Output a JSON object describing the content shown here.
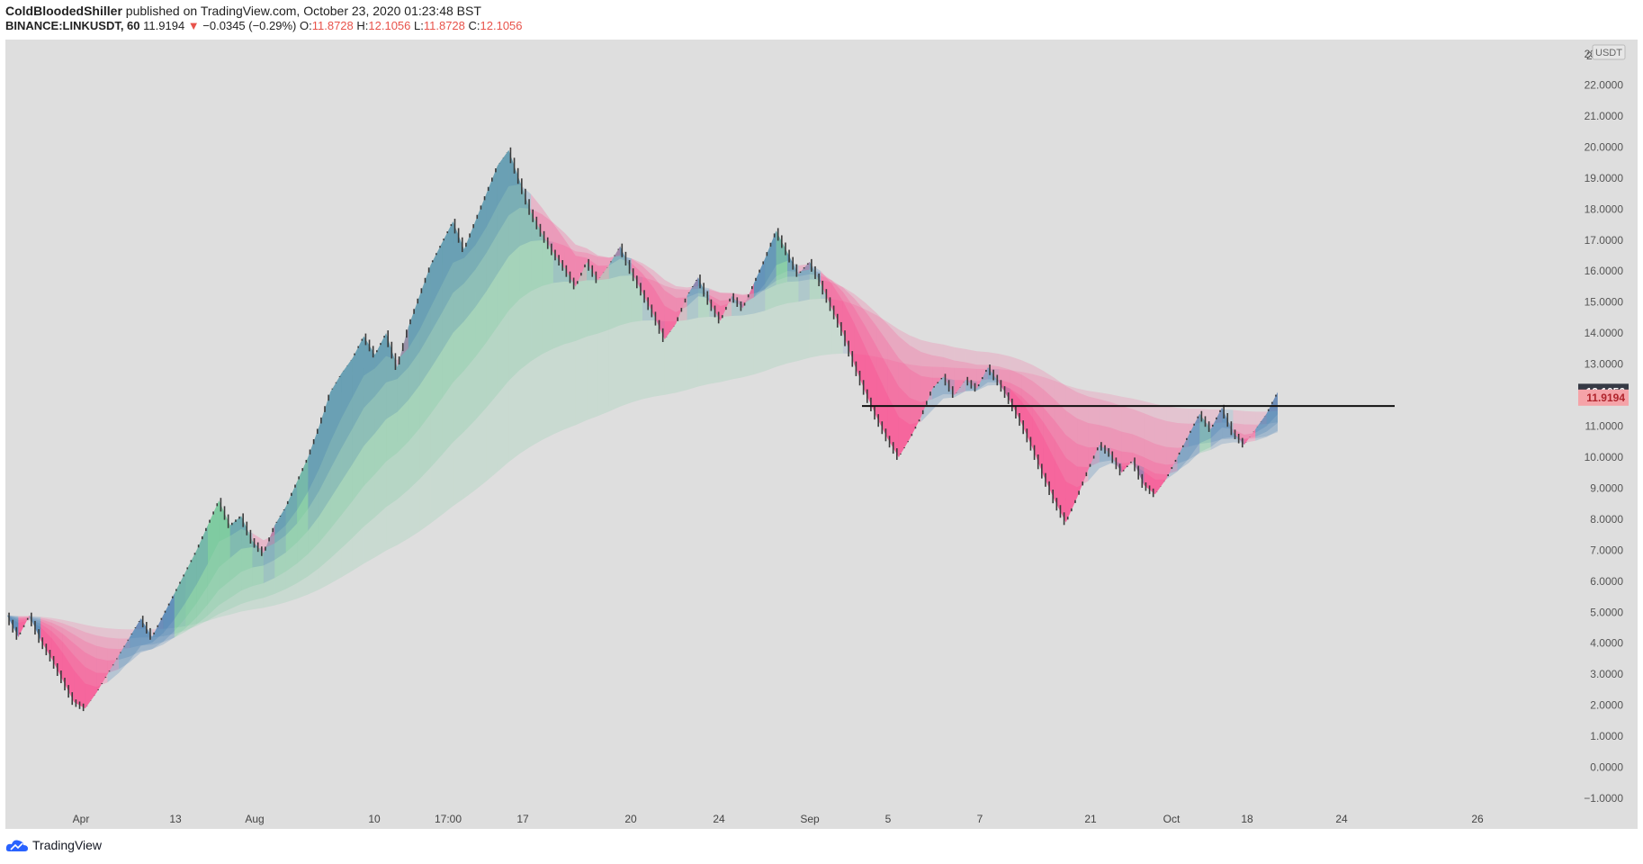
{
  "header": {
    "author": "ColdBloodedShiller",
    "published": "published on TradingView.com, October 23, 2020 01:23:48 BST",
    "symbol": "BINANCE:LINKUSDT, 60",
    "last": "11.9194",
    "change": "−0.0345 (−0.29%)",
    "o_label": "O:",
    "o": "11.8728",
    "h_label": "H:",
    "h": "12.1056",
    "l_label": "L:",
    "l": "11.8728",
    "c_label": "C:",
    "c": "12.1056"
  },
  "footer": {
    "brand": "TradingView"
  },
  "colors": {
    "background": "#dedede",
    "pink": "#ff3d88",
    "green": "#5fc48c",
    "blue": "#3b78b0",
    "candle": "#3a3a3a",
    "last_price_label": "#363a45",
    "prev_price_label": "#f5a3a8"
  },
  "chart_data": {
    "type": "line",
    "currency": "USDT",
    "y_axis": {
      "min": -1,
      "max": 23,
      "ticks": [
        "23.0000",
        "22.0000",
        "21.0000",
        "20.0000",
        "19.0000",
        "18.0000",
        "17.0000",
        "16.0000",
        "15.0000",
        "14.0000",
        "13.0000",
        "12.0000",
        "11.0000",
        "10.0000",
        "9.0000",
        "8.0000",
        "7.0000",
        "6.0000",
        "5.0000",
        "4.0000",
        "3.0000",
        "2.0000",
        "1.0000",
        "0.0000",
        "−1.0000"
      ],
      "top_fragment": "2"
    },
    "x_ticks": [
      "Apr",
      "13",
      "Aug",
      "10",
      "17:00",
      "17",
      "20",
      "24",
      "Sep",
      "5",
      "7",
      "21",
      "Oct",
      "18",
      "24",
      "26"
    ],
    "price_labels": [
      {
        "value": 12.1056,
        "text": "12.1056"
      },
      {
        "value": 11.9194,
        "text": "11.9194"
      }
    ],
    "horizontal_line": 11.65,
    "series": [
      {
        "values": [
          4.9,
          4.2,
          4.9,
          4.1,
          3.5,
          2.8,
          2.1,
          1.9,
          2.4,
          3.0,
          3.6,
          4.2,
          4.8,
          4.2,
          4.9,
          5.6,
          6.3,
          7.0,
          7.8,
          8.6,
          7.8,
          8.1,
          7.3,
          6.9,
          7.8,
          8.4,
          9.2,
          10.0,
          11.0,
          12.1,
          12.7,
          13.2,
          13.9,
          13.3,
          14.0,
          12.9,
          14.2,
          15.2,
          16.2,
          16.9,
          17.6,
          16.7,
          17.6,
          18.5,
          19.4,
          19.9,
          18.9,
          17.9,
          17.2,
          16.6,
          16.1,
          15.5,
          16.3,
          15.7,
          16.2,
          16.8,
          16.0,
          15.3,
          14.6,
          13.8,
          14.3,
          15.2,
          15.8,
          15.0,
          14.4,
          15.2,
          14.8,
          15.6,
          16.4,
          17.3,
          16.6,
          15.9,
          16.3,
          15.6,
          14.8,
          14.0,
          13.0,
          12.1,
          11.3,
          10.6,
          10.0,
          10.6,
          11.3,
          12.2,
          12.6,
          12.0,
          12.5,
          12.2,
          12.9,
          12.4,
          11.8,
          11.1,
          10.3,
          9.4,
          8.6,
          7.9,
          8.7,
          9.6,
          10.4,
          10.1,
          9.5,
          9.9,
          9.1,
          8.8,
          9.3,
          10.0,
          10.7,
          11.4,
          10.9,
          11.6,
          10.8,
          10.4,
          10.9,
          11.4,
          12.1
        ]
      }
    ]
  }
}
